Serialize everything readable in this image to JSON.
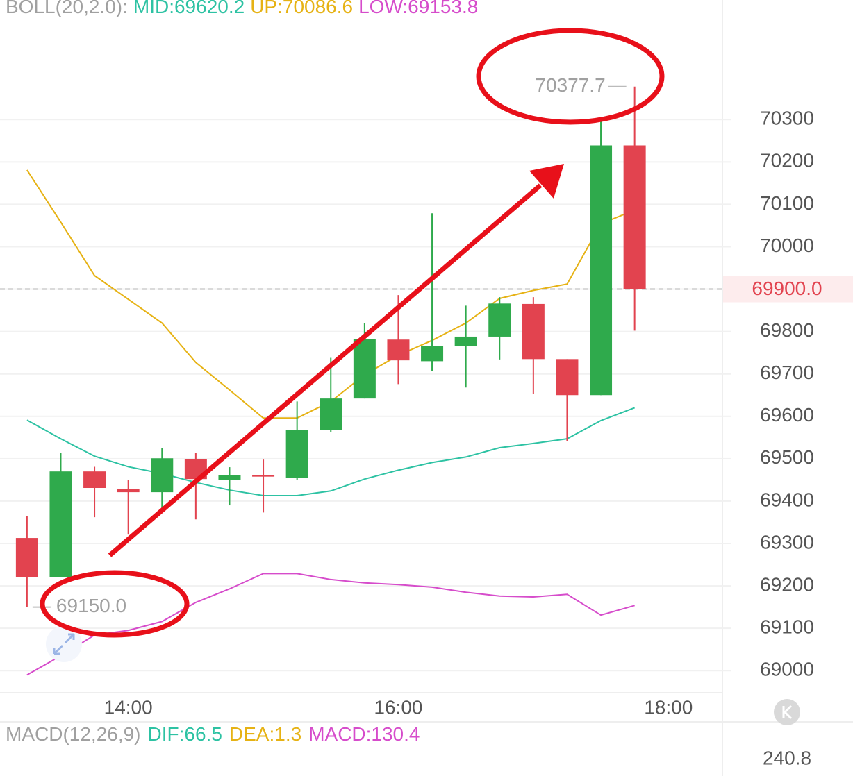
{
  "chart_data": {
    "type": "candlestick",
    "indicator_label": "BOLL(20,2.0):",
    "x": [
      13.25,
      13.5,
      13.75,
      14,
      14.25,
      14.5,
      14.75,
      15,
      15.25,
      15.5,
      15.75,
      16,
      16.25,
      16.5,
      16.75,
      17,
      17.25,
      17.5,
      17.75
    ],
    "open": [
      69313,
      69220,
      69470,
      69429,
      69421,
      69499,
      69450,
      69461,
      69455,
      69567,
      69642,
      69781,
      69730,
      69766,
      69788,
      69865,
      69735,
      69650,
      70239
    ],
    "high": [
      69365,
      69514,
      69481,
      69449,
      69526,
      69514,
      69480,
      69498,
      69635,
      69738,
      69820,
      69886,
      70079,
      69861,
      69881,
      69881,
      69735,
      70300,
      70377.7
    ],
    "low": [
      69150,
      69220,
      69362,
      69321,
      69378,
      69357,
      69390,
      69373,
      69449,
      69563,
      69642,
      69676,
      69706,
      69668,
      69734,
      69652,
      69542,
      69650,
      69802
    ],
    "close": [
      69220,
      69470,
      69431,
      69421,
      69501,
      69452,
      69462,
      69459,
      69567,
      69642,
      69783,
      69732,
      69766,
      69788,
      69866,
      69735,
      69650,
      70239,
      69900
    ],
    "up_color": "#2faa4c",
    "down_color": "#e2434f",
    "series": [
      {
        "name": "MID:69620.2",
        "color": "#2dc2a3",
        "values": [
          69591,
          69547,
          69506,
          69481,
          69465,
          69444,
          69426,
          69413,
          69413,
          69424,
          69452,
          69473,
          69491,
          69504,
          69526,
          69536,
          69547,
          69590,
          69620.2
        ]
      },
      {
        "name": "UP:70086.6",
        "color": "#e6b214",
        "values": [
          70181,
          70058,
          69932,
          69876,
          69820,
          69727,
          69662,
          69596,
          69596,
          69635,
          69698,
          69744,
          69779,
          69820,
          69878,
          69897,
          69912,
          70054,
          70086.6
        ]
      },
      {
        "name": "LOW:69153.8",
        "color": "#d64ccb",
        "values": [
          68990,
          69035,
          69084,
          69095,
          69116,
          69161,
          69193,
          69229,
          69229,
          69215,
          69207,
          69203,
          69197,
          69185,
          69176,
          69174,
          69180,
          69131,
          69153.8
        ]
      }
    ],
    "xlim": [
      13.05,
      18.4
    ],
    "xticks": [
      {
        "value": 14,
        "label": "14:00"
      },
      {
        "value": 16,
        "label": "16:00"
      },
      {
        "value": 18,
        "label": "18:00"
      }
    ],
    "ylim": [
      68948,
      70582
    ],
    "yticks": [
      69000,
      69100,
      69200,
      69300,
      69400,
      69500,
      69600,
      69700,
      69800,
      69900,
      70000,
      70100,
      70200,
      70300
    ],
    "grid": true,
    "last_price": {
      "value": 69900,
      "label": "69900.0"
    },
    "high_label": {
      "value": 70377.7,
      "label": "70377.7"
    },
    "low_label": {
      "value": 69150,
      "label": "69150.0"
    }
  },
  "macd_panel": {
    "title": "MACD(12,26,9)",
    "items": [
      {
        "label": "DIF:66.5",
        "color": "#2dc2a3"
      },
      {
        "label": "DEA:1.3",
        "color": "#e6b214"
      },
      {
        "label": "MACD:130.4",
        "color": "#d64ccb"
      }
    ],
    "axis_label": "240.8"
  }
}
